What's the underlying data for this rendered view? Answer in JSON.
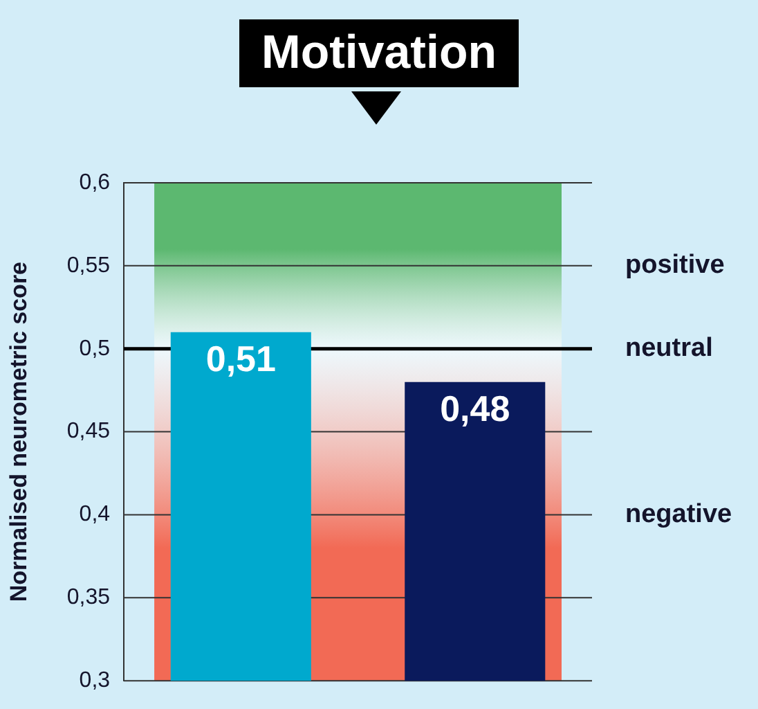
{
  "chart_data": {
    "type": "bar",
    "title": "Motivation",
    "ylabel": "Normalised neurometric score",
    "categories": [
      null,
      null
    ],
    "values": [
      0.51,
      0.48
    ],
    "colors": [
      "#00a9ce",
      "#0a1a5c"
    ],
    "value_labels": [
      "0,51",
      "0,48"
    ],
    "ylim": [
      0.3,
      0.6
    ],
    "yticks": [
      {
        "value": 0.3,
        "label": "0,3"
      },
      {
        "value": 0.35,
        "label": "0,35"
      },
      {
        "value": 0.4,
        "label": "0,4"
      },
      {
        "value": 0.45,
        "label": "0,45"
      },
      {
        "value": 0.5,
        "label": "0,5"
      },
      {
        "value": 0.55,
        "label": "0,55"
      },
      {
        "value": 0.6,
        "label": "0,6"
      }
    ],
    "grid": "y",
    "legend": false,
    "ref_lines": [
      {
        "axis": "y",
        "value": 0.5,
        "label": "neutral",
        "color": "#000000"
      }
    ],
    "bands": [
      {
        "axis": "y",
        "from": 0.5,
        "to": 0.6,
        "label": "positive",
        "color": "#5cb870"
      },
      {
        "axis": "y",
        "from": 0.5,
        "to": 0.3,
        "label": "negative",
        "color": "#f26a55"
      }
    ]
  }
}
